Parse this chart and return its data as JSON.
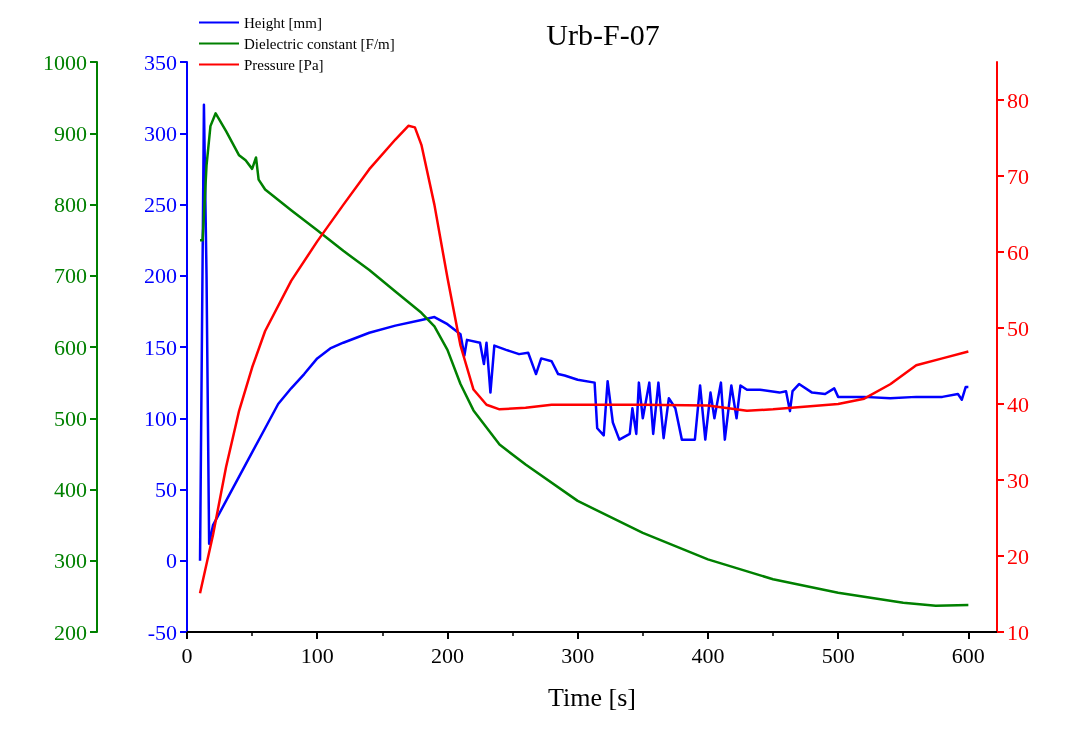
{
  "chart_data": {
    "type": "line",
    "title": "Urb-F-07",
    "xlabel": "Time [s]",
    "xlim": [
      0,
      622
    ],
    "xticks": [
      0,
      100,
      200,
      300,
      400,
      500,
      600
    ],
    "ylim": [
      -50,
      350
    ],
    "yticks": [
      -50,
      0,
      50,
      100,
      150,
      200,
      250,
      300,
      350
    ],
    "y2lim": [
      10,
      85
    ],
    "y2ticks": [
      10,
      20,
      30,
      40,
      50,
      60,
      70,
      80
    ],
    "y3lim": [
      200,
      1000
    ],
    "y3ticks": [
      200,
      300,
      400,
      500,
      600,
      700,
      800,
      900,
      1000
    ],
    "legend": "top left",
    "grid": false,
    "marker": "none",
    "line_style": "solid",
    "series": [
      {
        "name": "Height [mm]",
        "color": "#0000ff",
        "axis": "y",
        "x": [
          10,
          13,
          15,
          17,
          20,
          30,
          40,
          50,
          60,
          70,
          80,
          90,
          100,
          110,
          120,
          140,
          160,
          180,
          190,
          200,
          210,
          213,
          215,
          225,
          228,
          230,
          233,
          236,
          245,
          255,
          262,
          268,
          272,
          280,
          285,
          290,
          300,
          313,
          315,
          320,
          323,
          327,
          332,
          340,
          342,
          345,
          347,
          350,
          355,
          358,
          362,
          366,
          370,
          375,
          380,
          390,
          394,
          398,
          402,
          405,
          410,
          413,
          418,
          422,
          425,
          430,
          440,
          455,
          460,
          463,
          465,
          470,
          480,
          490,
          497,
          500,
          520,
          540,
          560,
          580,
          592,
          595,
          598,
          600
        ],
        "values": [
          0,
          320,
          200,
          12,
          25,
          42,
          59,
          76,
          93,
          110,
          121,
          131,
          142,
          149,
          153,
          160,
          165,
          169,
          171,
          166,
          159,
          144,
          155,
          153,
          138,
          153,
          118,
          151,
          148,
          145,
          146,
          131,
          142,
          140,
          131,
          130,
          127,
          125,
          93,
          88,
          126,
          97,
          85,
          89,
          107,
          89,
          125,
          100,
          125,
          89,
          125,
          86,
          114,
          107,
          85,
          85,
          123,
          85,
          118,
          100,
          125,
          85,
          123,
          100,
          123,
          120,
          120,
          118,
          119,
          105,
          119,
          124,
          118,
          117,
          121,
          115,
          115,
          114,
          115,
          115,
          117,
          113,
          122,
          122
        ]
      },
      {
        "name": "Dielectric constant [F/m]",
        "color": "#008000",
        "axis": "y3",
        "x": [
          10,
          12,
          15,
          18,
          22,
          30,
          40,
          45,
          50,
          53,
          55,
          60,
          80,
          100,
          120,
          140,
          160,
          180,
          190,
          200,
          210,
          220,
          240,
          260,
          300,
          350,
          400,
          450,
          500,
          550,
          575,
          600
        ],
        "values": [
          750,
          750,
          855,
          910,
          928,
          903,
          869,
          862,
          850,
          866,
          835,
          821,
          792,
          764,
          735,
          708,
          678,
          648,
          629,
          596,
          548,
          511,
          463,
          435,
          384,
          339,
          302,
          274,
          255,
          241,
          237,
          238
        ]
      },
      {
        "name": "Pressure [Pa]",
        "color": "#ff0000",
        "axis": "y2",
        "x": [
          10,
          20,
          30,
          40,
          50,
          60,
          80,
          100,
          120,
          140,
          160,
          170,
          175,
          180,
          190,
          200,
          210,
          220,
          230,
          240,
          260,
          280,
          350,
          400,
          430,
          450,
          500,
          520,
          540,
          560,
          580,
          600
        ],
        "values": [
          15.1,
          22.8,
          31.7,
          39.1,
          44.8,
          49.6,
          56.2,
          61.4,
          66.2,
          70.9,
          74.8,
          76.6,
          76.4,
          74.1,
          66.2,
          56.6,
          47.7,
          41.9,
          39.9,
          39.3,
          39.5,
          39.9,
          39.9,
          39.8,
          39.1,
          39.3,
          40,
          40.7,
          42.6,
          45.1,
          46,
          46.9
        ]
      }
    ]
  }
}
